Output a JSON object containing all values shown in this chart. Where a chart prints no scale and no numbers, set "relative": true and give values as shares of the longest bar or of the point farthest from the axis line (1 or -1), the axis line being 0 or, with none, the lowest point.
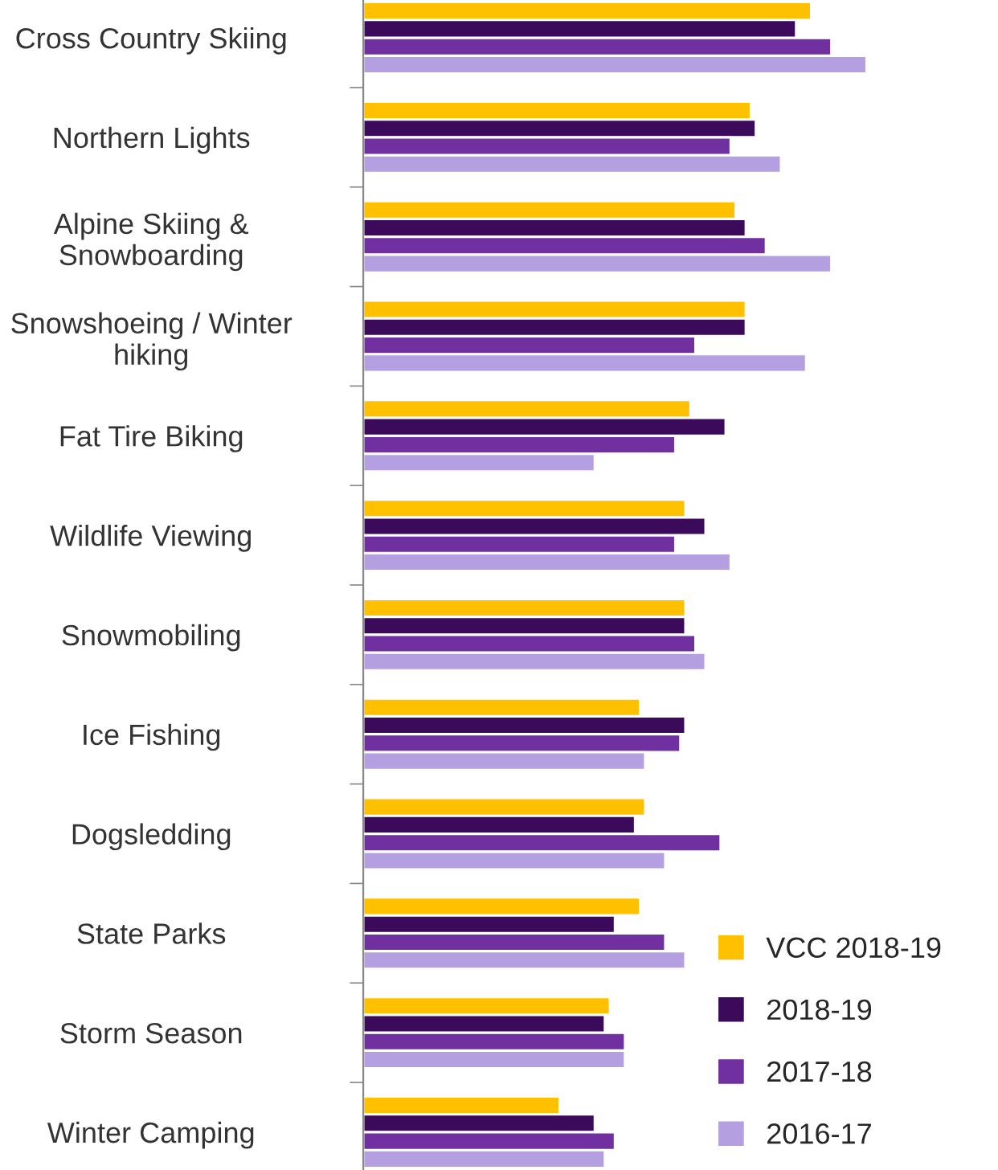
{
  "chart_data": {
    "type": "bar",
    "orientation": "horizontal",
    "relative": true,
    "legend": "bottom right",
    "categories": [
      "Cross Country Skiing",
      "Northern Lights",
      "Alpine Skiing &\nSnowboarding",
      "Snowshoeing / Winter\nhiking",
      "Fat Tire Biking",
      "Wildlife Viewing",
      "Snowmobiling",
      "Ice Fishing",
      "Dogsledding",
      "State Parks",
      "Storm Season",
      "Winter Camping"
    ],
    "series": [
      {
        "name": "VCC 2018-19",
        "color": "#ffc000",
        "values": [
          0.89,
          0.77,
          0.74,
          0.76,
          0.65,
          0.64,
          0.64,
          0.55,
          0.56,
          0.55,
          0.49,
          0.39
        ]
      },
      {
        "name": "2018-19",
        "color": "#3c0a5a",
        "values": [
          0.86,
          0.78,
          0.76,
          0.76,
          0.72,
          0.68,
          0.64,
          0.64,
          0.54,
          0.5,
          0.48,
          0.46
        ]
      },
      {
        "name": "2017-18",
        "color": "#7030a0",
        "values": [
          0.93,
          0.73,
          0.8,
          0.66,
          0.62,
          0.62,
          0.66,
          0.63,
          0.71,
          0.6,
          0.52,
          0.5
        ]
      },
      {
        "name": "2016-17",
        "color": "#b4a0e0",
        "values": [
          1,
          0.83,
          0.93,
          0.88,
          0.46,
          0.73,
          0.68,
          0.56,
          0.6,
          0.64,
          0.52,
          0.48
        ]
      }
    ]
  }
}
